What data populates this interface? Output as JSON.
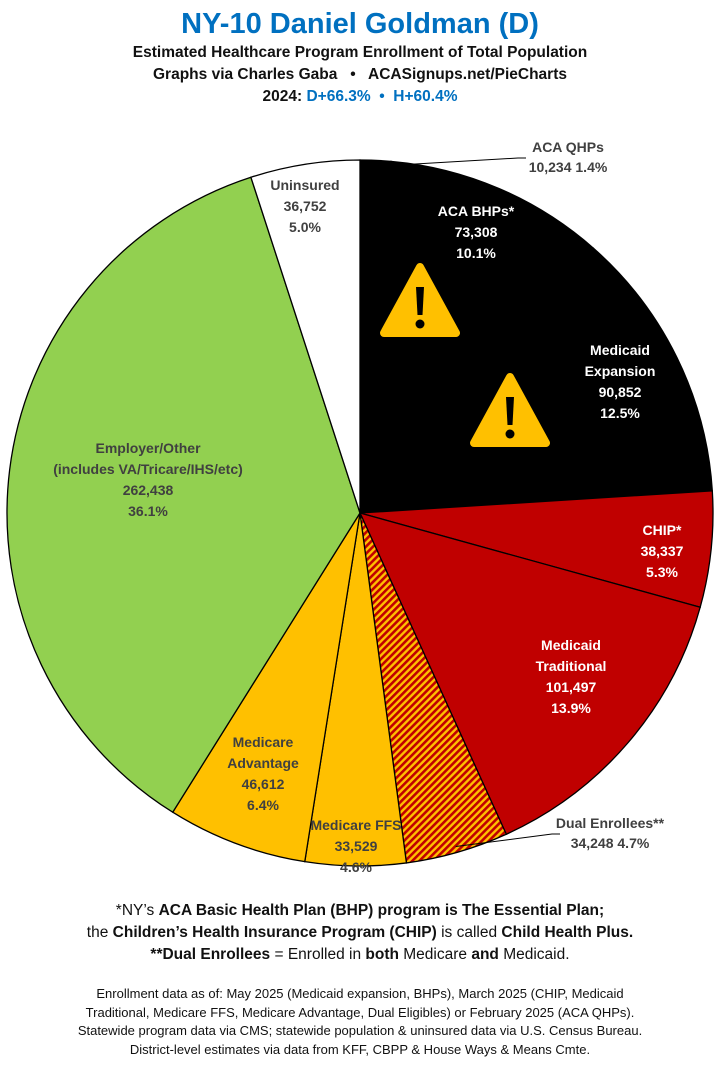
{
  "header": {
    "title": "NY-10 Daniel Goldman (D)",
    "subtitle": "Estimated Healthcare Program Enrollment of Total Population",
    "credit": "Graphs via Charles Gaba   •   ACASignups.net/PieCharts",
    "year_label": "2024: ",
    "margins": "D+66.3%  •  H+60.4%"
  },
  "chart_data": {
    "type": "pie",
    "start": "12 o'clock, clockwise",
    "slices": [
      {
        "label": [
          "ACA QHPs"
        ],
        "value": "10,234",
        "pct": 1.4,
        "pct_label": "1.4%",
        "color": "#000000",
        "text_color": "#404040",
        "outside": true
      },
      {
        "label": [
          "ACA BHPs*"
        ],
        "value": "73,308",
        "pct": 10.1,
        "pct_label": "10.1%",
        "color": "#000000",
        "text_color": "#FFFFFF",
        "warning": true
      },
      {
        "label": [
          "Medicaid",
          "Expansion"
        ],
        "value": "90,852",
        "pct": 12.5,
        "pct_label": "12.5%",
        "color": "#000000",
        "text_color": "#FFFFFF",
        "warning": true
      },
      {
        "label": [
          "CHIP*"
        ],
        "value": "38,337",
        "pct": 5.3,
        "pct_label": "5.3%",
        "color": "#C00000",
        "text_color": "#FFFFFF"
      },
      {
        "label": [
          "Medicaid",
          "Traditional"
        ],
        "value": "101,497",
        "pct": 13.9,
        "pct_label": "13.9%",
        "color": "#C00000",
        "text_color": "#FFFFFF"
      },
      {
        "label": [
          "Dual Enrollees**"
        ],
        "value": "34,248",
        "pct": 4.7,
        "pct_label": "4.7%",
        "color": "hatch-red-yellow",
        "text_color": "#404040",
        "outside": true
      },
      {
        "label": [
          "Medicare FFS"
        ],
        "value": "33,529",
        "pct": 4.6,
        "pct_label": "4.6%",
        "color": "#FFC000",
        "text_color": "#404040"
      },
      {
        "label": [
          "Medicare",
          "Advantage"
        ],
        "value": "46,612",
        "pct": 6.4,
        "pct_label": "6.4%",
        "color": "#FFC000",
        "text_color": "#404040"
      },
      {
        "label": [
          "Employer/Other",
          "(includes VA/Tricare/IHS/etc)"
        ],
        "value": "262,438",
        "pct": 36.1,
        "pct_label": "36.1%",
        "color": "#92D050",
        "text_color": "#404040"
      },
      {
        "label": [
          "Uninsured"
        ],
        "value": "36,752",
        "pct": 5.0,
        "pct_label": "5.0%",
        "color": "#FFFFFF",
        "text_color": "#404040"
      }
    ]
  },
  "notes": {
    "l1a": "*NY’s ",
    "l1b": "ACA Basic Health Plan (BHP) program is The Essential Plan;",
    "l2a": "the ",
    "l2b": "Children’s Health Insurance Program (CHIP)",
    "l2c": " is called ",
    "l2d": "Child Health Plus.",
    "l3a": "**Dual Enrollees",
    "l3b": " = Enrolled in ",
    "l3c": "both",
    "l3d": " Medicare ",
    "l3e": "and",
    "l3f": " Medicaid."
  },
  "sources": [
    "Enrollment data as of: May 2025 (Medicaid expansion, BHPs), March 2025 (CHIP, Medicaid",
    "Traditional, Medicare FFS, Medicare Advantage, Dual Eligibles) or February 2025 (ACA QHPs).",
    "Statewide program data via CMS; statewide population & uninsured data via U.S. Census Bureau.",
    "District-level estimates via data from KFF, CBPP & House Ways & Means Cmte."
  ]
}
